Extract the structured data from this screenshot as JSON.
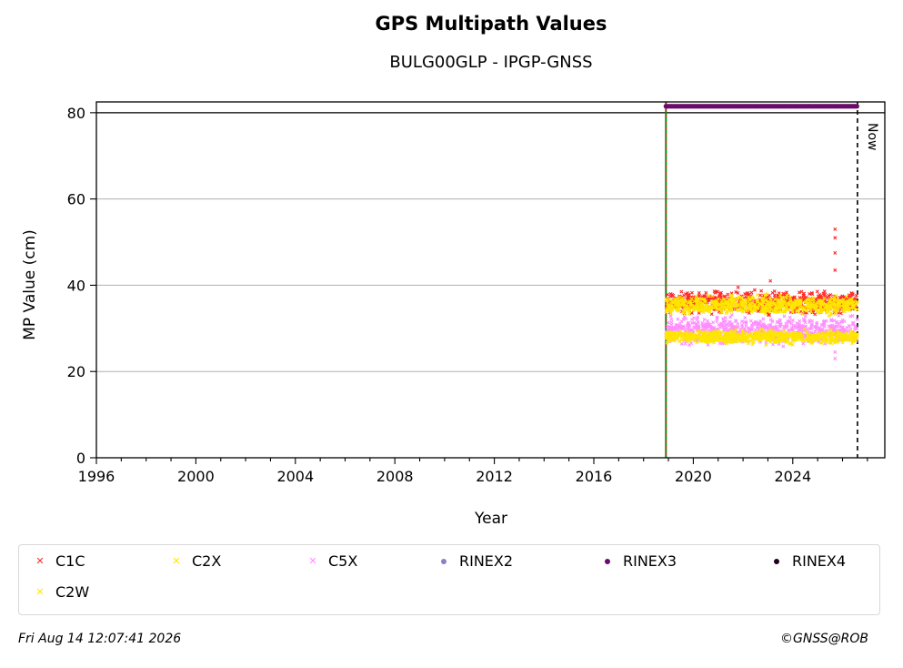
{
  "chart_data": {
    "type": "scatter",
    "title": "GPS Multipath Values",
    "subtitle": "BULG00GLP - IPGP-GNSS",
    "xlabel": "Year",
    "ylabel": "MP Value (cm)",
    "xlim": [
      1996,
      2027.7
    ],
    "ylim": [
      0,
      82.5
    ],
    "xticks": [
      1996,
      2000,
      2004,
      2008,
      2012,
      2016,
      2020,
      2024
    ],
    "yticks": [
      0,
      20,
      40,
      60,
      80
    ],
    "grid": "horizontal",
    "legend_position": "bottom",
    "now_label": "Now",
    "now_x": 2026.6,
    "station_start_x": 2018.9,
    "reference_line_y": 80,
    "series": [
      {
        "name": "C1C",
        "marker": "x",
        "color": "#ff2a2a",
        "x_range": [
          2018.9,
          2026.6
        ],
        "y_mean": 36.0,
        "y_spread": 1.6,
        "outliers": [
          [
            2025.7,
            53
          ],
          [
            2025.7,
            51
          ],
          [
            2025.7,
            47.5
          ],
          [
            2025.7,
            43.5
          ],
          [
            2023.1,
            41
          ],
          [
            2021.8,
            39.5
          ]
        ]
      },
      {
        "name": "C2X",
        "marker": "x",
        "color": "#ffe600",
        "x_range": [
          2018.9,
          2026.6
        ],
        "y_mean": 35.4,
        "y_spread": 1.4,
        "outliers": []
      },
      {
        "name": "C5X",
        "marker": "x",
        "color": "#ff8cff",
        "x_range": [
          2018.9,
          2026.6
        ],
        "y_mean": 29.5,
        "y_spread": 2.0,
        "outliers": [
          [
            2025.7,
            23
          ],
          [
            2025.7,
            24.5
          ]
        ]
      },
      {
        "name": "RINEX2",
        "marker": "dot",
        "color": "#8c7fbf",
        "x_range": [],
        "y_mean": null,
        "y_spread": null,
        "outliers": []
      },
      {
        "name": "RINEX3",
        "marker": "dot",
        "color": "#6a0a6a",
        "x_range": [
          2018.9,
          2026.6
        ],
        "y_mean": 81.5,
        "y_spread": 0,
        "outliers": []
      },
      {
        "name": "RINEX4",
        "marker": "dot",
        "color": "#200020",
        "x_range": [],
        "y_mean": null,
        "y_spread": null,
        "outliers": []
      },
      {
        "name": "C2W",
        "marker": "x",
        "color": "#ffe600",
        "x_range": [
          2018.9,
          2026.6
        ],
        "y_mean": 28.0,
        "y_spread": 1.0,
        "outliers": []
      }
    ]
  },
  "footer": {
    "timestamp": "Fri Aug 14 12:07:41 2026",
    "copyright": "©GNSS@ROB"
  }
}
